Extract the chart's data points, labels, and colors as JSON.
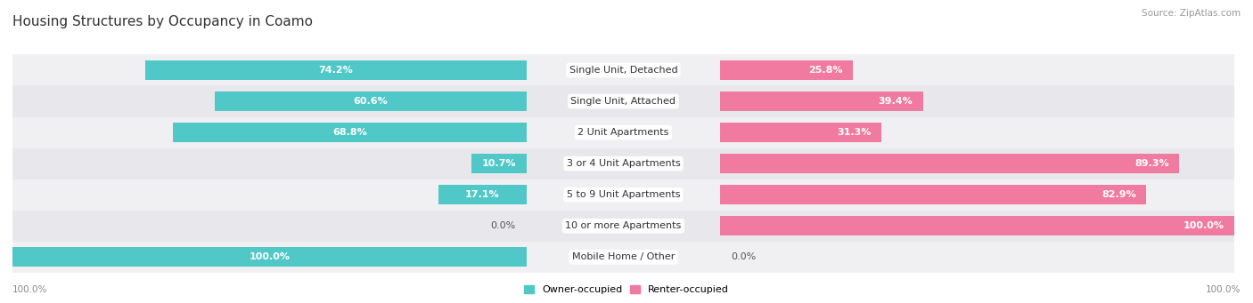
{
  "title": "Housing Structures by Occupancy in Coamo",
  "source": "Source: ZipAtlas.com",
  "categories": [
    "Single Unit, Detached",
    "Single Unit, Attached",
    "2 Unit Apartments",
    "3 or 4 Unit Apartments",
    "5 to 9 Unit Apartments",
    "10 or more Apartments",
    "Mobile Home / Other"
  ],
  "owner_pct": [
    74.2,
    60.6,
    68.8,
    10.7,
    17.1,
    0.0,
    100.0
  ],
  "renter_pct": [
    25.8,
    39.4,
    31.3,
    89.3,
    82.9,
    100.0,
    0.0
  ],
  "owner_color": "#50C8C8",
  "renter_color": "#F07AA0",
  "row_bg_even": "#F0F0F2",
  "row_bg_odd": "#E8E8EC",
  "bar_height": 0.62,
  "figsize": [
    14.06,
    3.41
  ],
  "dpi": 100,
  "title_fontsize": 11,
  "label_fontsize": 8,
  "pct_fontsize": 8,
  "tick_fontsize": 7.5,
  "legend_fontsize": 8
}
